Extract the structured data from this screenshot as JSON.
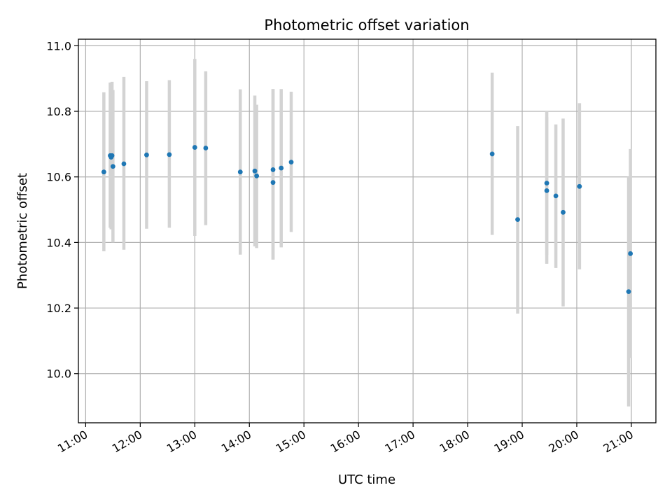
{
  "chart_data": {
    "type": "scatter",
    "title": "Photometric offset variation",
    "xlabel": "UTC time",
    "ylabel": "Photometric offset",
    "xlim": [
      "10:52",
      "21:27"
    ],
    "ylim": [
      9.85,
      11.02
    ],
    "x_ticks": [
      "11:00",
      "12:00",
      "13:00",
      "14:00",
      "15:00",
      "16:00",
      "17:00",
      "18:00",
      "19:00",
      "20:00",
      "21:00"
    ],
    "y_ticks": [
      "10.0",
      "10.2",
      "10.4",
      "10.6",
      "10.8",
      "11.0"
    ],
    "grid": true,
    "marker_color": "#1f77b4",
    "errorbar_color": "#d3d3d3",
    "series": [
      {
        "points": [
          {
            "x": "11:20",
            "y": 10.615,
            "lo": 10.373,
            "hi": 10.858
          },
          {
            "x": "11:27",
            "y": 10.665,
            "lo": 10.445,
            "hi": 10.888
          },
          {
            "x": "11:28",
            "y": 10.66,
            "lo": 10.44,
            "hi": 10.87
          },
          {
            "x": "11:29",
            "y": 10.665,
            "lo": 10.45,
            "hi": 10.89
          },
          {
            "x": "11:30",
            "y": 10.632,
            "lo": 10.4,
            "hi": 10.865
          },
          {
            "x": "11:42",
            "y": 10.64,
            "lo": 10.378,
            "hi": 10.905
          },
          {
            "x": "12:07",
            "y": 10.667,
            "lo": 10.442,
            "hi": 10.892
          },
          {
            "x": "12:32",
            "y": 10.668,
            "lo": 10.445,
            "hi": 10.895
          },
          {
            "x": "13:00",
            "y": 10.69,
            "lo": 10.42,
            "hi": 10.96
          },
          {
            "x": "13:12",
            "y": 10.688,
            "lo": 10.453,
            "hi": 10.922
          },
          {
            "x": "13:50",
            "y": 10.615,
            "lo": 10.363,
            "hi": 10.867
          },
          {
            "x": "14:06",
            "y": 10.618,
            "lo": 10.388,
            "hi": 10.848
          },
          {
            "x": "14:08",
            "y": 10.603,
            "lo": 10.383,
            "hi": 10.82
          },
          {
            "x": "14:26",
            "y": 10.583,
            "lo": 10.348,
            "hi": 10.868
          },
          {
            "x": "14:26",
            "y": 10.622,
            "lo": 10.348,
            "hi": 10.868
          },
          {
            "x": "14:35",
            "y": 10.627,
            "lo": 10.385,
            "hi": 10.868
          },
          {
            "x": "14:46",
            "y": 10.645,
            "lo": 10.432,
            "hi": 10.86
          },
          {
            "x": "18:27",
            "y": 10.67,
            "lo": 10.423,
            "hi": 10.918
          },
          {
            "x": "18:55",
            "y": 10.47,
            "lo": 10.183,
            "hi": 10.755
          },
          {
            "x": "19:27",
            "y": 10.581,
            "lo": 10.363,
            "hi": 10.8
          },
          {
            "x": "19:27",
            "y": 10.558,
            "lo": 10.335,
            "hi": 10.782
          },
          {
            "x": "19:37",
            "y": 10.542,
            "lo": 10.322,
            "hi": 10.76
          },
          {
            "x": "19:45",
            "y": 10.492,
            "lo": 10.205,
            "hi": 10.778
          },
          {
            "x": "20:03",
            "y": 10.571,
            "lo": 10.318,
            "hi": 10.825
          },
          {
            "x": "20:57",
            "y": 10.25,
            "lo": 9.9,
            "hi": 10.6
          },
          {
            "x": "20:59",
            "y": 10.366,
            "lo": 10.048,
            "hi": 10.685
          }
        ]
      }
    ]
  }
}
